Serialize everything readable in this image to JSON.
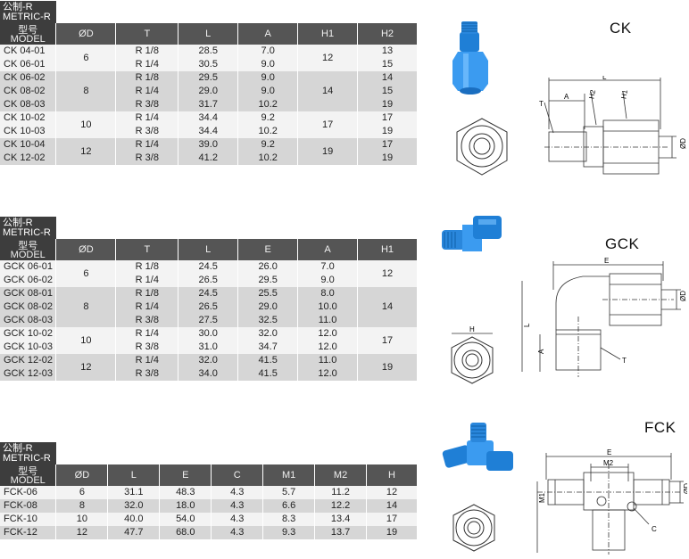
{
  "ck": {
    "tag_cn": "公制-R",
    "tag_en": "METRIC-R",
    "header_model_cn": "型号",
    "header_model_en": "MODEL",
    "columns": [
      "ØD",
      "T",
      "L",
      "A",
      "H1",
      "H2"
    ],
    "title": "CK",
    "rows": [
      {
        "model": "CK 04-01",
        "T": "R 1/8",
        "L": "28.5",
        "A": "7.0",
        "H2": "13"
      },
      {
        "model": "CK 06-01",
        "T": "R 1/4",
        "L": "30.5",
        "A": "9.0",
        "H2": "15"
      },
      {
        "model": "CK 06-02",
        "T": "R 1/8",
        "L": "29.5",
        "A": "9.0",
        "H2": "14"
      },
      {
        "model": "CK 08-02",
        "T": "R 1/4",
        "L": "29.0",
        "A": "9.0",
        "H2": "15"
      },
      {
        "model": "CK 08-03",
        "T": "R 3/8",
        "L": "31.7",
        "A": "10.2",
        "H2": "19"
      },
      {
        "model": "CK 10-02",
        "T": "R 1/4",
        "L": "34.4",
        "A": "9.2",
        "H2": "17"
      },
      {
        "model": "CK 10-03",
        "T": "R 3/8",
        "L": "34.4",
        "A": "10.2",
        "H2": "19"
      },
      {
        "model": "CK 10-04",
        "T": "R 1/4",
        "L": "39.0",
        "A": "9.2",
        "H2": "17"
      },
      {
        "model": "CK 12-02",
        "T": "R 3/8",
        "L": "41.2",
        "A": "10.2",
        "H2": "19"
      }
    ],
    "groups": [
      {
        "D": "6",
        "H1": "12"
      },
      {
        "D": "8",
        "H1": "14"
      },
      {
        "D": "10",
        "H1": "17"
      },
      {
        "D": "12",
        "H1": "19"
      }
    ],
    "dims": {
      "L": "L",
      "A": "A",
      "T": "T",
      "H1": "H1",
      "H2": "H2",
      "D": "ØD"
    }
  },
  "gck": {
    "tag_cn": "公制-R",
    "tag_en": "METRIC-R",
    "header_model_cn": "型号",
    "header_model_en": "MODEL",
    "columns": [
      "ØD",
      "T",
      "L",
      "E",
      "A",
      "H1"
    ],
    "title": "GCK",
    "rows": [
      {
        "model": "GCK 06-01",
        "T": "R 1/8",
        "L": "24.5",
        "E": "26.0",
        "A": "7.0"
      },
      {
        "model": "GCK 06-02",
        "T": "R 1/4",
        "L": "26.5",
        "E": "29.5",
        "A": "9.0"
      },
      {
        "model": "GCK 08-01",
        "T": "R 1/8",
        "L": "24.5",
        "E": "25.5",
        "A": "8.0"
      },
      {
        "model": "GCK 08-02",
        "T": "R 1/4",
        "L": "26.5",
        "E": "29.0",
        "A": "10.0"
      },
      {
        "model": "GCK 08-03",
        "T": "R 3/8",
        "L": "27.5",
        "E": "32.5",
        "A": "11.0"
      },
      {
        "model": "GCK 10-02",
        "T": "R 1/4",
        "L": "30.0",
        "E": "32.0",
        "A": "12.0"
      },
      {
        "model": "GCK 10-03",
        "T": "R 3/8",
        "L": "31.0",
        "E": "34.7",
        "A": "12.0"
      },
      {
        "model": "GCK 12-02",
        "T": "R 1/4",
        "L": "32.0",
        "E": "41.5",
        "A": "11.0"
      },
      {
        "model": "GCK 12-03",
        "T": "R 3/8",
        "L": "34.0",
        "E": "41.5",
        "A": "12.0"
      }
    ],
    "groups": [
      {
        "D": "6",
        "H1": "12"
      },
      {
        "D": "8",
        "H1": "14"
      },
      {
        "D": "10",
        "H1": "17"
      },
      {
        "D": "12",
        "H1": "19"
      }
    ],
    "dims": {
      "E": "E",
      "L": "L",
      "A": "A",
      "T": "T",
      "H": "H",
      "D": "ØD"
    }
  },
  "fck": {
    "tag_cn": "公制-R",
    "tag_en": "METRIC-R",
    "header_model_cn": "型号",
    "header_model_en": "MODEL",
    "columns": [
      "ØD",
      "L",
      "E",
      "C",
      "M1",
      "M2",
      "H"
    ],
    "title": "FCK",
    "rows": [
      {
        "model": "FCK-06",
        "D": "6",
        "L": "31.1",
        "E": "48.3",
        "C": "4.3",
        "M1": "5.7",
        "M2": "11.2",
        "H": "12"
      },
      {
        "model": "FCK-08",
        "D": "8",
        "L": "32.0",
        "E": "18.0",
        "C": "4.3",
        "M1": "6.6",
        "M2": "12.2",
        "H": "14"
      },
      {
        "model": "FCK-10",
        "D": "10",
        "L": "40.0",
        "E": "54.0",
        "C": "4.3",
        "M1": "8.3",
        "M2": "13.4",
        "H": "17"
      },
      {
        "model": "FCK-12",
        "D": "12",
        "L": "47.7",
        "E": "68.0",
        "C": "4.3",
        "M1": "9.3",
        "M2": "13.7",
        "H": "19"
      }
    ],
    "dims": {
      "E": "E",
      "M2": "M2",
      "M1": "M1",
      "C": "C",
      "H": "H",
      "D": "ØD"
    }
  },
  "colors": {
    "header": "#555555",
    "tag": "#3d3d3d",
    "row_light": "#f3f3f3",
    "row_dark": "#d6d6d6",
    "fitting_blue": "#2f8fe0"
  }
}
